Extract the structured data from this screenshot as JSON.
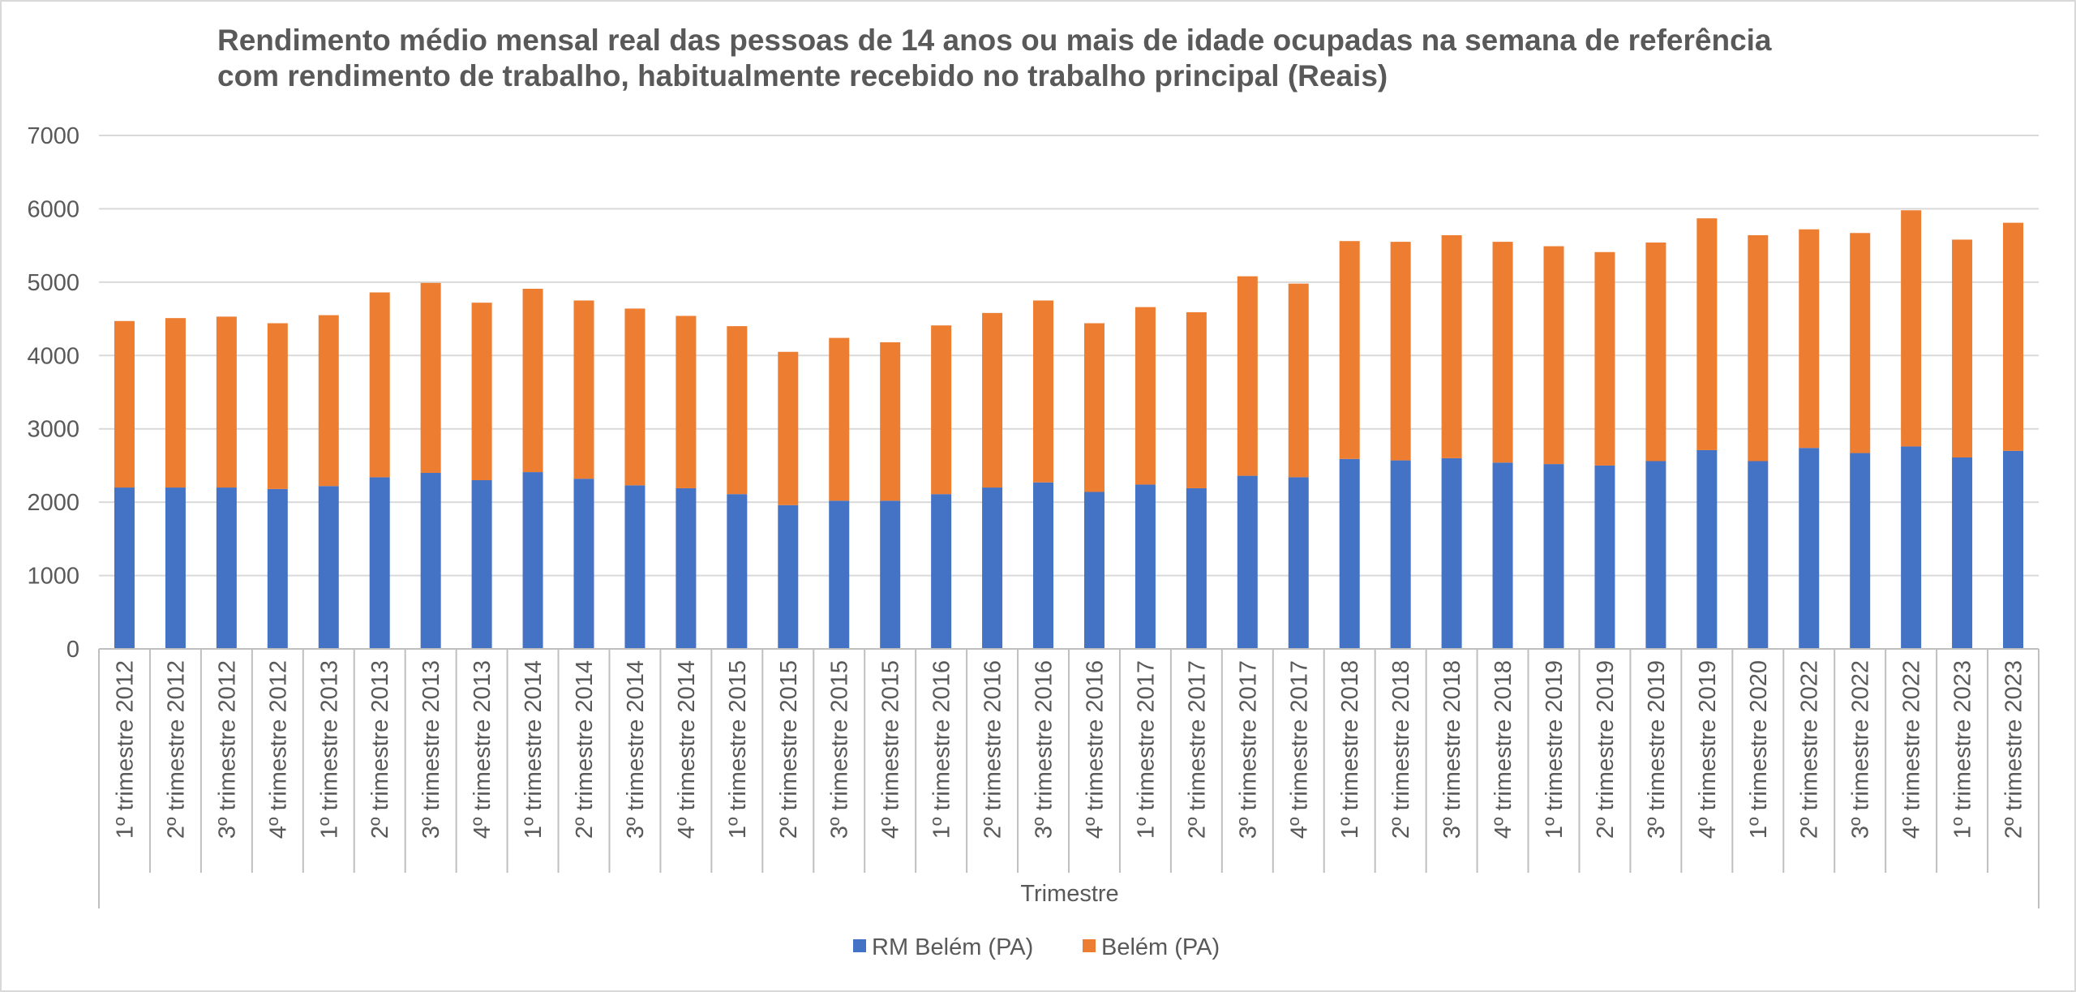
{
  "chart_data": {
    "type": "bar",
    "stacked": true,
    "title": [
      "Rendimento médio mensal real das pessoas de 14 anos ou mais de idade ocupadas na semana de referência",
      "com rendimento de trabalho, habitualmente recebido no trabalho principal (Reais)"
    ],
    "xlabel": "Trimestre",
    "ylabel": "",
    "ylim": [
      0,
      7000
    ],
    "yticks": [
      "0",
      "1000",
      "2000",
      "3000",
      "4000",
      "5000",
      "6000",
      "7000"
    ],
    "grid": true,
    "legend_position": "bottom",
    "categories": [
      "1º trimestre 2012",
      "2º trimestre 2012",
      "3º trimestre 2012",
      "4º trimestre 2012",
      "1º trimestre 2013",
      "2º trimestre 2013",
      "3º trimestre 2013",
      "4º trimestre 2013",
      "1º trimestre 2014",
      "2º trimestre 2014",
      "3º trimestre 2014",
      "4º trimestre 2014",
      "1º trimestre 2015",
      "2º trimestre 2015",
      "3º trimestre 2015",
      "4º trimestre 2015",
      "1º trimestre 2016",
      "2º trimestre 2016",
      "3º trimestre 2016",
      "4º trimestre 2016",
      "1º trimestre 2017",
      "2º trimestre 2017",
      "3º trimestre 2017",
      "4º trimestre 2017",
      "1º trimestre 2018",
      "2º trimestre 2018",
      "3º trimestre 2018",
      "4º trimestre 2018",
      "1º trimestre 2019",
      "2º trimestre 2019",
      "3º trimestre 2019",
      "4º trimestre 2019",
      "1º trimestre 2020",
      "2º trimestre 2022",
      "3º trimestre 2022",
      "4º trimestre 2022",
      "1º trimestre 2023",
      "2º trimestre 2023"
    ],
    "series": [
      {
        "name": "RM Belém (PA)",
        "color": "#4472c4",
        "values": [
          2200,
          2200,
          2200,
          2180,
          2220,
          2340,
          2400,
          2300,
          2410,
          2320,
          2230,
          2190,
          2110,
          1960,
          2020,
          2020,
          2110,
          2200,
          2270,
          2140,
          2240,
          2190,
          2360,
          2340,
          2590,
          2570,
          2600,
          2540,
          2520,
          2500,
          2560,
          2710,
          2560,
          2740,
          2670,
          2760,
          2610,
          2700
        ]
      },
      {
        "name": "Belém (PA)",
        "color": "#ed7d31",
        "values": [
          2270,
          2310,
          2330,
          2260,
          2330,
          2520,
          2590,
          2420,
          2500,
          2430,
          2410,
          2350,
          2290,
          2090,
          2220,
          2160,
          2300,
          2380,
          2480,
          2300,
          2420,
          2400,
          2720,
          2640,
          2970,
          2980,
          3040,
          3010,
          2970,
          2910,
          2980,
          3160,
          3080,
          2980,
          3000,
          3220,
          2970,
          3110
        ]
      }
    ]
  }
}
